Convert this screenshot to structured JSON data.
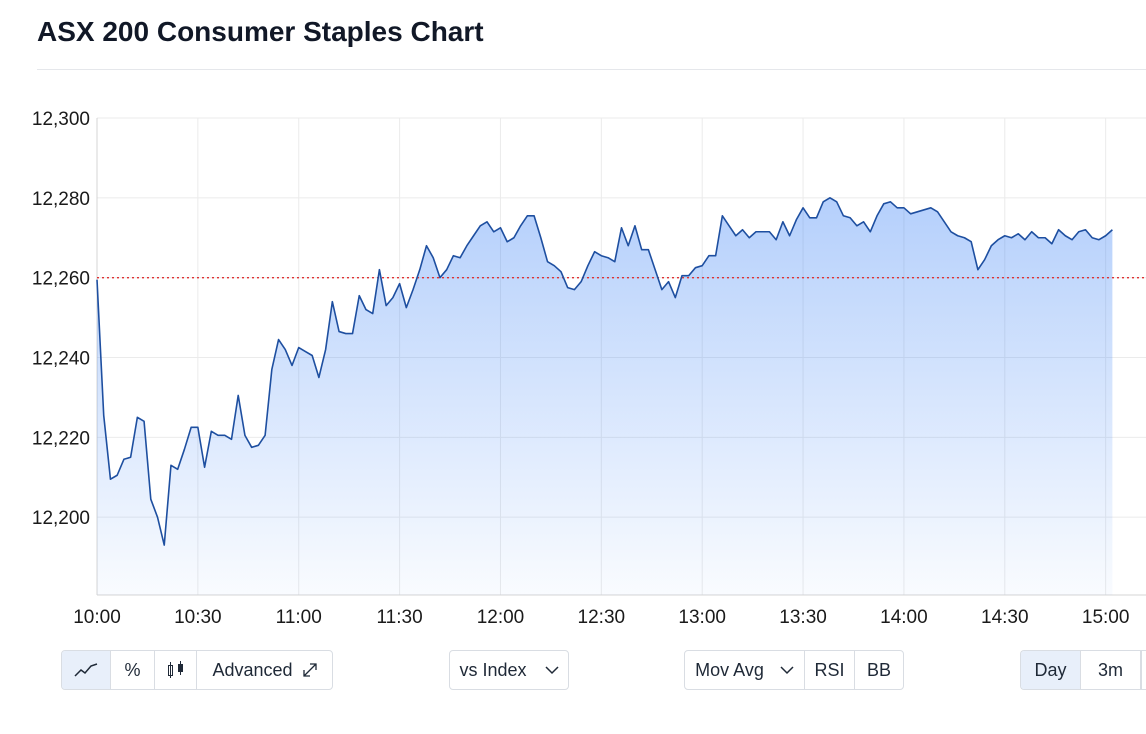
{
  "chart_data": {
    "type": "area",
    "title": "ASX 200 Consumer Staples Chart",
    "color": "#1e4fa0",
    "grid": true,
    "reference_line": 12260,
    "reference_color": "#e03131",
    "x": [
      600,
      602,
      604,
      606,
      608,
      610,
      612,
      614,
      616,
      618,
      620,
      622,
      624,
      626,
      628,
      630,
      632,
      634,
      636,
      638,
      640,
      642,
      644,
      646,
      648,
      650,
      652,
      654,
      656,
      658,
      660,
      662,
      664,
      666,
      668,
      670,
      672,
      674,
      676,
      678,
      680,
      682,
      684,
      686,
      688,
      690,
      692,
      694,
      696,
      698,
      700,
      702,
      704,
      706,
      708,
      710,
      712,
      714,
      716,
      718,
      720,
      722,
      724,
      726,
      728,
      730,
      732,
      734,
      736,
      738,
      740,
      742,
      744,
      746,
      748,
      750,
      752,
      754,
      756,
      758,
      760,
      762,
      764,
      766,
      768,
      770,
      772,
      774,
      776,
      778,
      780,
      782,
      784,
      786,
      788,
      790,
      792,
      794,
      796,
      798,
      800,
      802,
      804,
      806,
      808,
      810,
      812,
      814,
      816,
      818,
      820,
      822,
      824,
      826,
      828,
      830,
      832,
      834,
      836,
      838,
      840,
      842,
      844,
      846,
      848,
      850,
      852,
      854,
      856,
      858,
      860,
      862,
      864,
      866,
      868,
      870,
      872,
      874,
      876,
      878,
      880,
      882,
      884,
      886,
      888,
      890,
      892,
      894,
      896,
      898,
      900,
      902
    ],
    "values": [
      12259.5,
      12225.5,
      12209.5,
      12210.5,
      12214.5,
      12215,
      12225,
      12224,
      12204.5,
      12200,
      12193,
      12213,
      12212,
      12217,
      12222.5,
      12222.5,
      12212.5,
      12221.5,
      12220.5,
      12220.5,
      12219.5,
      12230.5,
      12220.5,
      12217.5,
      12218,
      12220.5,
      12237,
      12244.5,
      12242,
      12238,
      12242.5,
      12241.5,
      12240.5,
      12235,
      12242,
      12254,
      12246.5,
      12246,
      12246,
      12255.5,
      12252,
      12251,
      12262,
      12253,
      12255,
      12258.5,
      12252.5,
      12257,
      12262,
      12268,
      12265,
      12260,
      12262,
      12265.5,
      12265,
      12268,
      12270.5,
      12273,
      12274,
      12271.5,
      12272.5,
      12269,
      12270,
      12273,
      12275.5,
      12275.5,
      12270,
      12264,
      12263,
      12261.5,
      12257.5,
      12257,
      12259,
      12263,
      12266.5,
      12265.5,
      12265,
      12264,
      12272.5,
      12268,
      12273,
      12267,
      12267,
      12262,
      12257,
      12259,
      12255,
      12260.5,
      12260.5,
      12262.5,
      12263,
      12265.5,
      12265.5,
      12275.5,
      12273,
      12270.5,
      12272,
      12270,
      12271.5,
      12271.5,
      12271.5,
      12269.5,
      12274,
      12270.5,
      12274.5,
      12277.5,
      12275,
      12275,
      12279,
      12280,
      12279,
      12275.5,
      12275,
      12273,
      12274,
      12271.5,
      12275.5,
      12278.5,
      12279,
      12277.5,
      12277.5,
      12276,
      12276.5,
      12277,
      12277.5,
      12276.5,
      12274,
      12271.5,
      12270.5,
      12270,
      12269,
      12262,
      12264.5,
      12268,
      12269.5,
      12270.5,
      12270,
      12271,
      12269.5,
      12271.5,
      12270,
      12270,
      12268.5,
      12272,
      12270.5,
      12269.5,
      12271.5,
      12272,
      12270,
      12269.5,
      12270.5,
      12272
    ],
    "xlim": [
      600,
      912
    ],
    "ylim": [
      12180.5,
      12300
    ],
    "xticks": [
      {
        "value": 600,
        "label": "10:00"
      },
      {
        "value": 630,
        "label": "10:30"
      },
      {
        "value": 660,
        "label": "11:00"
      },
      {
        "value": 690,
        "label": "11:30"
      },
      {
        "value": 720,
        "label": "12:00"
      },
      {
        "value": 750,
        "label": "12:30"
      },
      {
        "value": 780,
        "label": "13:00"
      },
      {
        "value": 810,
        "label": "13:30"
      },
      {
        "value": 840,
        "label": "14:00"
      },
      {
        "value": 870,
        "label": "14:30"
      },
      {
        "value": 900,
        "label": "15:00"
      }
    ],
    "yticks": [
      {
        "value": 12200,
        "label": "12,200"
      },
      {
        "value": 12220,
        "label": "12,220"
      },
      {
        "value": 12240,
        "label": "12,240"
      },
      {
        "value": 12260,
        "label": "12,260"
      },
      {
        "value": 12280,
        "label": "12,280"
      },
      {
        "value": 12300,
        "label": "12,300"
      }
    ]
  },
  "toolbar": {
    "percent": "%",
    "advanced": "Advanced",
    "compare": "vs Index",
    "indicators": [
      "Mov Avg",
      "RSI",
      "BB"
    ],
    "periods": [
      "Day",
      "3m"
    ]
  }
}
